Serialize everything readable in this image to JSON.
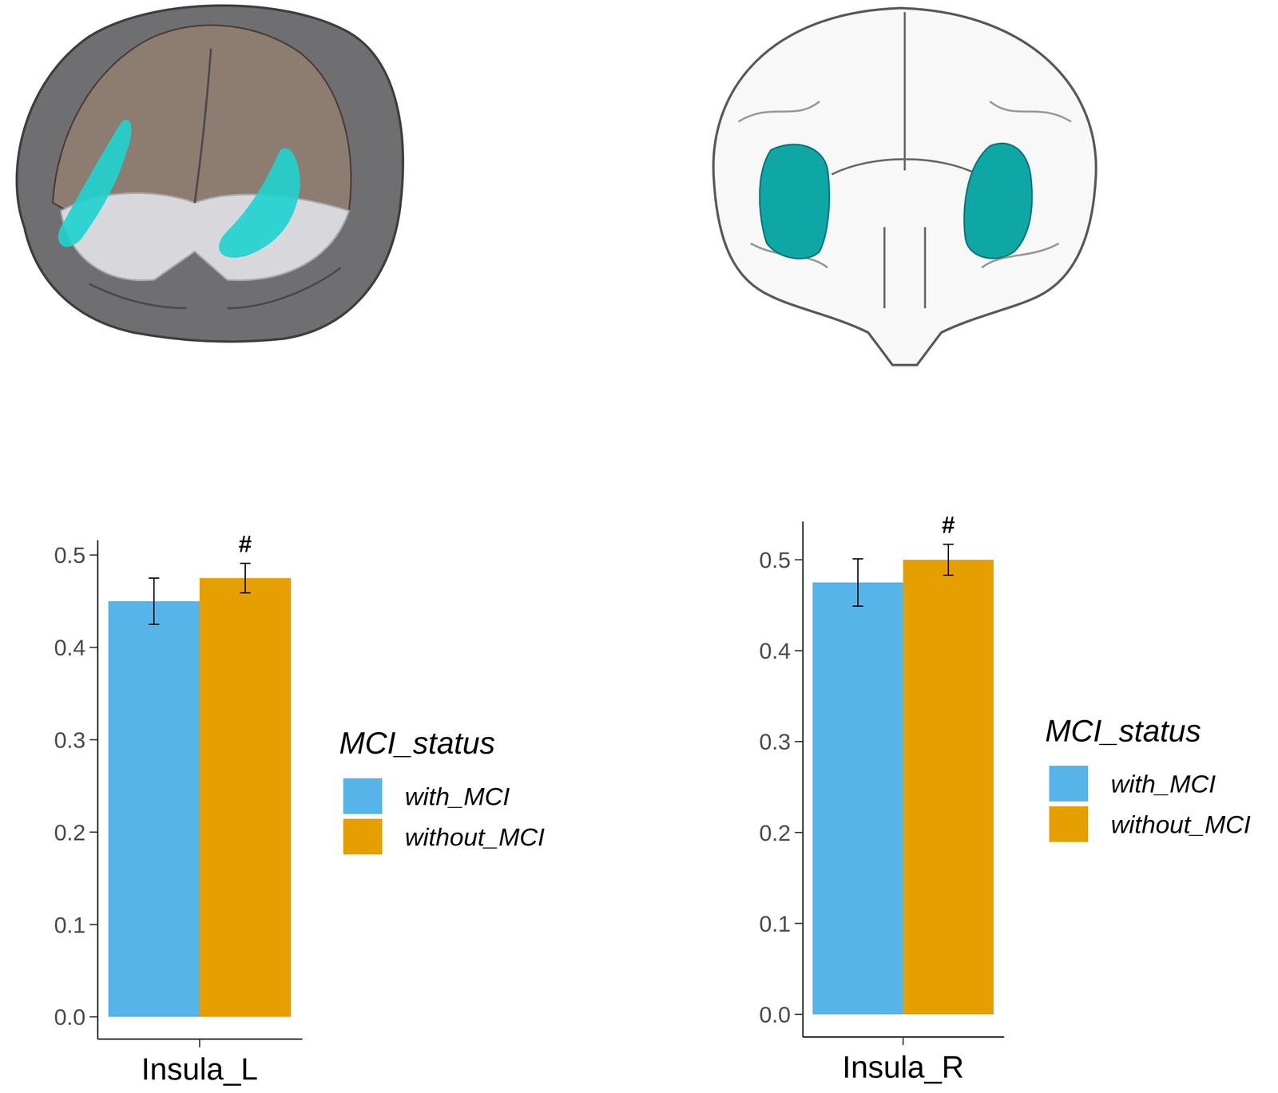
{
  "chart_data": [
    {
      "type": "bar",
      "categories": [
        "Insula_L"
      ],
      "series": [
        {
          "name": "with_MCI",
          "color": "#56B4E9",
          "values": [
            0.45
          ],
          "errors": [
            0.025
          ]
        },
        {
          "name": "without_MCI",
          "color": "#E69F00",
          "values": [
            0.475
          ],
          "errors": [
            0.016
          ],
          "annotations": [
            "#"
          ]
        }
      ],
      "legend_title": "MCI_status",
      "legend": "right",
      "ylim": [
        -0.024,
        0.516
      ],
      "yticks": [
        {
          "value": 0,
          "label": "0.0"
        },
        0.1,
        0.2,
        0.3,
        0.4,
        0.5
      ],
      "grid": false
    },
    {
      "type": "bar",
      "categories": [
        "Insula_R"
      ],
      "series": [
        {
          "name": "with_MCI",
          "color": "#56B4E9",
          "values": [
            0.475
          ],
          "errors": [
            0.026
          ]
        },
        {
          "name": "without_MCI",
          "color": "#E69F00",
          "values": [
            0.5
          ],
          "errors": [
            0.017
          ],
          "annotations": [
            "#"
          ]
        }
      ],
      "legend_title": "MCI_status",
      "legend": "right",
      "ylim": [
        -0.025,
        0.542
      ],
      "yticks": [
        {
          "value": 0,
          "label": "0.0"
        },
        0.1,
        0.2,
        0.3,
        0.4,
        0.5
      ],
      "grid": false
    }
  ]
}
